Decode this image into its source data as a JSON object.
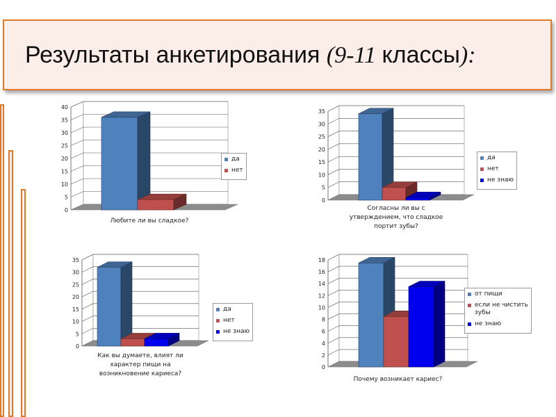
{
  "slide_title": {
    "part1": "Результаты анкетирования ",
    "part2": "(9-11 ",
    "part3": "классы",
    "part4": "):"
  },
  "chart_data": [
    {
      "type": "bar",
      "title": "",
      "xlabel": "Любите ли вы сладкое?",
      "ylabel": "",
      "ylim": [
        0,
        40
      ],
      "yticks": [
        0,
        5,
        10,
        15,
        20,
        25,
        30,
        35,
        40
      ],
      "grid": true,
      "legend_position": "right",
      "series": [
        {
          "name": "да",
          "value": 36,
          "color": "#4f81bd"
        },
        {
          "name": "нет",
          "value": 4,
          "color": "#c0504d"
        }
      ]
    },
    {
      "type": "bar",
      "title": "",
      "xlabel": "Согласны ли вы с утверждением, что сладкое портит зубы?",
      "xlabel_lines": [
        "Согласны ли вы с",
        "утверждением, что сладкое",
        "портит зубы?"
      ],
      "ylabel": "",
      "ylim": [
        0,
        35
      ],
      "yticks": [
        0,
        5,
        10,
        15,
        20,
        25,
        30,
        35
      ],
      "grid": true,
      "legend_position": "right",
      "series": [
        {
          "name": "да",
          "value": 34,
          "color": "#4f81bd"
        },
        {
          "name": "нет",
          "value": 5,
          "color": "#c0504d"
        },
        {
          "name": "не знаю",
          "value": 1,
          "color": "#0000ee"
        }
      ]
    },
    {
      "type": "bar",
      "title": "",
      "xlabel": "Как вы думаете, влият ли характер пищи на возникновение кариеса?",
      "xlabel_lines": [
        "Как вы думаете, влият ли",
        "характер пищи на",
        "возникновение кариеса?"
      ],
      "ylabel": "",
      "ylim": [
        0,
        35
      ],
      "yticks": [
        0,
        5,
        10,
        15,
        20,
        25,
        30,
        35
      ],
      "grid": true,
      "legend_position": "right",
      "series": [
        {
          "name": "да",
          "value": 32,
          "color": "#4f81bd"
        },
        {
          "name": "нет",
          "value": 3,
          "color": "#c0504d"
        },
        {
          "name": "не знаю",
          "value": 3,
          "color": "#0000ee"
        }
      ]
    },
    {
      "type": "bar",
      "title": "",
      "xlabel": "Почему возникает кариес?",
      "ylabel": "",
      "ylim": [
        0,
        18
      ],
      "yticks": [
        0,
        2,
        4,
        6,
        8,
        10,
        12,
        14,
        16,
        18
      ],
      "grid": true,
      "legend_position": "right",
      "series": [
        {
          "name": "от пищи",
          "value": 17.5,
          "color": "#4f81bd"
        },
        {
          "name": "если не чистить зубы",
          "name_lines": [
            "если не чистить",
            "зубы"
          ],
          "value": 8.5,
          "color": "#c0504d"
        },
        {
          "name": "не знаю",
          "value": 13.5,
          "color": "#0000ee"
        }
      ]
    }
  ]
}
